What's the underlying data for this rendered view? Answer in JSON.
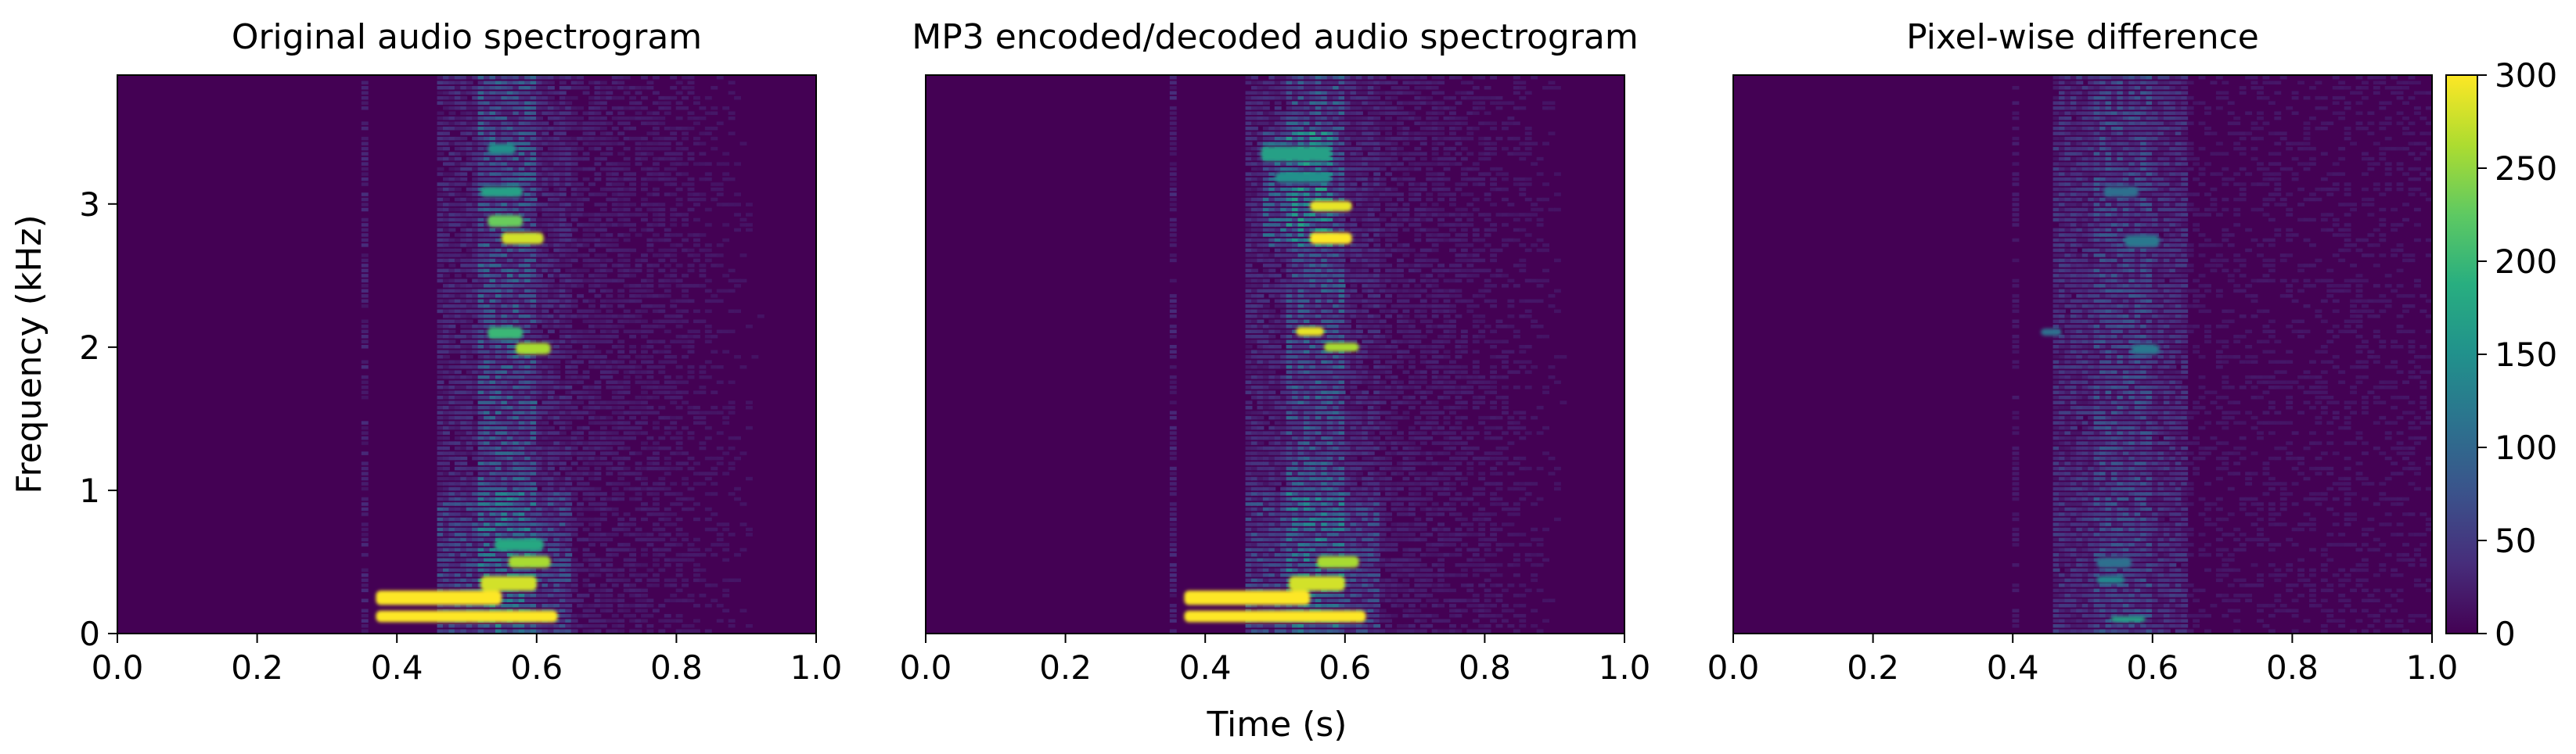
{
  "chart_data": {
    "type": "heatmap",
    "xlabel": "Time (s)",
    "ylabel": "Frequency (kHz)",
    "xlim": [
      0.0,
      1.0
    ],
    "ylim": [
      0.0,
      3.9
    ],
    "x_ticks": [
      "0.0",
      "0.2",
      "0.4",
      "0.6",
      "0.8",
      "1.0"
    ],
    "y_ticks": [
      "0",
      "1",
      "2",
      "3"
    ],
    "colormap": "viridis",
    "colorbar": {
      "range": [
        0,
        300
      ],
      "ticks": [
        "0",
        "50",
        "100",
        "150",
        "200",
        "250",
        "300"
      ]
    },
    "panels": [
      {
        "title": "Original audio spectrogram",
        "features": [
          {
            "t": [
              0.37,
              0.63
            ],
            "f": [
              0.08,
              0.16
            ],
            "value": 300
          },
          {
            "t": [
              0.37,
              0.55
            ],
            "f": [
              0.2,
              0.3
            ],
            "value": 300
          },
          {
            "t": [
              0.52,
              0.6
            ],
            "f": [
              0.3,
              0.4
            ],
            "value": 280
          },
          {
            "t": [
              0.56,
              0.62
            ],
            "f": [
              0.46,
              0.54
            ],
            "value": 260
          },
          {
            "t": [
              0.54,
              0.61
            ],
            "f": [
              0.58,
              0.66
            ],
            "value": 180
          },
          {
            "t": [
              0.53,
              0.58
            ],
            "f": [
              2.06,
              2.14
            ],
            "value": 200
          },
          {
            "t": [
              0.57,
              0.62
            ],
            "f": [
              1.95,
              2.03
            ],
            "value": 260
          },
          {
            "t": [
              0.53,
              0.58
            ],
            "f": [
              2.84,
              2.92
            ],
            "value": 230
          },
          {
            "t": [
              0.55,
              0.61
            ],
            "f": [
              2.72,
              2.8
            ],
            "value": 280
          },
          {
            "t": [
              0.52,
              0.58
            ],
            "f": [
              3.05,
              3.12
            ],
            "value": 170
          },
          {
            "t": [
              0.53,
              0.57
            ],
            "f": [
              3.35,
              3.42
            ],
            "value": 150
          }
        ]
      },
      {
        "title": "MP3 encoded/decoded audio spectrogram",
        "features": [
          {
            "t": [
              0.37,
              0.63
            ],
            "f": [
              0.08,
              0.16
            ],
            "value": 300
          },
          {
            "t": [
              0.37,
              0.55
            ],
            "f": [
              0.2,
              0.3
            ],
            "value": 300
          },
          {
            "t": [
              0.52,
              0.6
            ],
            "f": [
              0.3,
              0.4
            ],
            "value": 280
          },
          {
            "t": [
              0.56,
              0.62
            ],
            "f": [
              0.46,
              0.54
            ],
            "value": 260
          },
          {
            "t": [
              0.53,
              0.57
            ],
            "f": [
              2.08,
              2.14
            ],
            "value": 290
          },
          {
            "t": [
              0.57,
              0.62
            ],
            "f": [
              1.97,
              2.03
            ],
            "value": 260
          },
          {
            "t": [
              0.55,
              0.61
            ],
            "f": [
              2.95,
              3.02
            ],
            "value": 290
          },
          {
            "t": [
              0.55,
              0.61
            ],
            "f": [
              2.72,
              2.8
            ],
            "value": 300
          },
          {
            "t": [
              0.48,
              0.58
            ],
            "f": [
              3.3,
              3.4
            ],
            "value": 170
          },
          {
            "t": [
              0.5,
              0.58
            ],
            "f": [
              3.15,
              3.22
            ],
            "value": 150
          }
        ]
      },
      {
        "title": "Pixel-wise difference",
        "features": [
          {
            "t": [
              0.54,
              0.59
            ],
            "f": [
              0.08,
              0.12
            ],
            "value": 170
          },
          {
            "t": [
              0.52,
              0.56
            ],
            "f": [
              0.35,
              0.4
            ],
            "value": 140
          },
          {
            "t": [
              0.52,
              0.57
            ],
            "f": [
              0.46,
              0.53
            ],
            "value": 110
          },
          {
            "t": [
              0.44,
              0.47
            ],
            "f": [
              2.08,
              2.13
            ],
            "value": 110
          },
          {
            "t": [
              0.57,
              0.61
            ],
            "f": [
              1.95,
              2.02
            ],
            "value": 120
          },
          {
            "t": [
              0.56,
              0.61
            ],
            "f": [
              2.7,
              2.78
            ],
            "value": 120
          },
          {
            "t": [
              0.53,
              0.58
            ],
            "f": [
              3.05,
              3.12
            ],
            "value": 110
          }
        ]
      }
    ]
  }
}
